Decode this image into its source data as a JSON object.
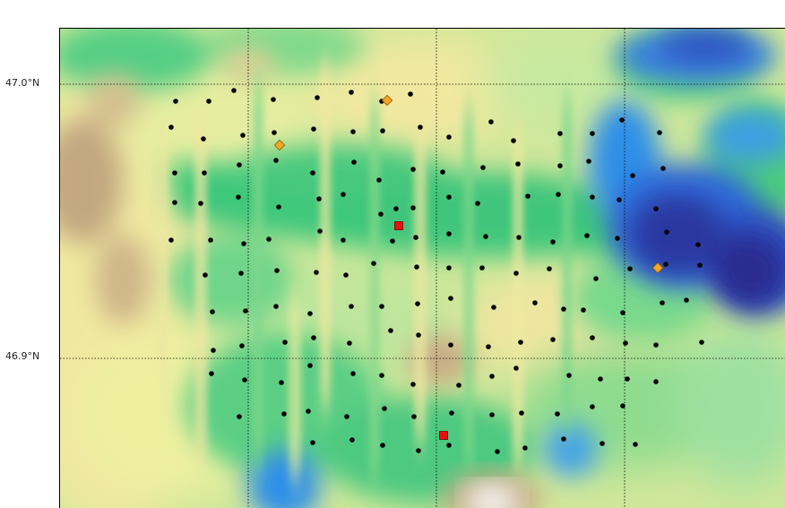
{
  "map": {
    "lat_labels": [
      "47.0°N",
      "46.9°N"
    ],
    "legend_colors": {
      "highland": "#c2a780",
      "upland": "#f2e8a0",
      "lowland": "#3cc87a",
      "water_light": "#2d8fe8",
      "water_deep": "#2c37a0",
      "peak": "#f4f4f4"
    },
    "marker_colors": {
      "station": "#000000",
      "diamond": "#f5a623",
      "square": "#e81010"
    }
  }
}
